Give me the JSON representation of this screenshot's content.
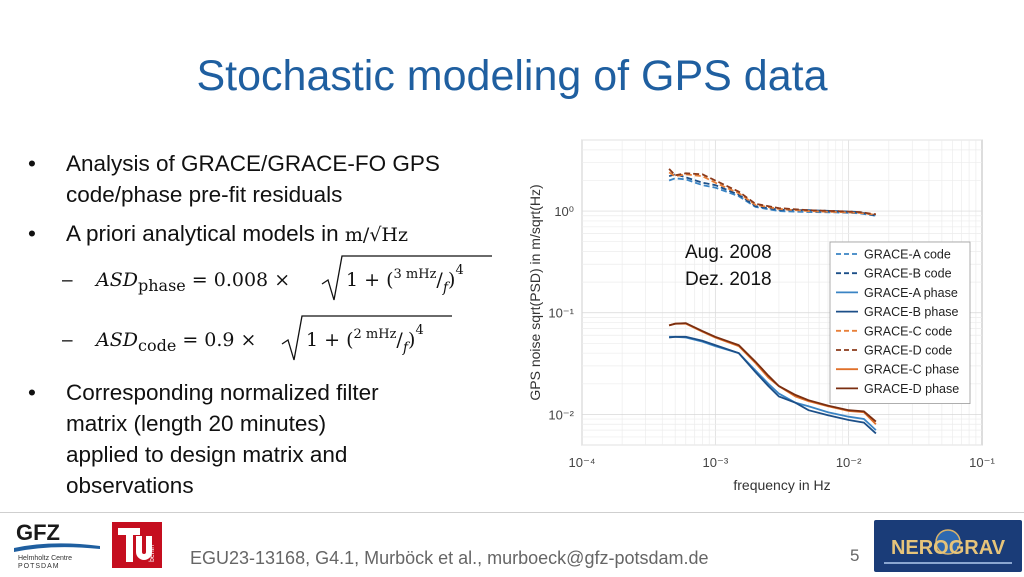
{
  "slide": {
    "title": "Stochastic modeling of GPS data",
    "bullets": [
      "Analysis of GRACE/GRACE-FO GPS",
      "code/phase pre-fit residuals",
      "A priori analytical models in",
      "Corresponding normalized filter",
      "matrix (length 20 minutes)",
      "applied to design matrix and",
      "observations"
    ],
    "units": "m/√Hz",
    "bullet_glyph": "•",
    "dash_glyph": "–",
    "formula_phase": {
      "lhs": "ASD",
      "sub": "phase",
      "rhs": "= 0.008 × ",
      "inner": "1 + (",
      "num": "3 mHz",
      "den": "f",
      "close": ")",
      "exp": "4"
    },
    "formula_code": {
      "lhs": "ASD",
      "sub": "code",
      "rhs": "= 0.9 × ",
      "inner": "1 + (",
      "num": "2 mHz",
      "den": "f",
      "close": ")",
      "exp": "4"
    },
    "footer": "EGU23-13168, G4.1, Murböck et al., murboeck@gfz-potsdam.de",
    "page_number": "5",
    "logos": {
      "gfz": "GFZ",
      "gfz_sub1": "Helmholtz Centre",
      "gfz_sub2": "POTSDAM",
      "tu": "berlin",
      "nerograv": "NEROGRAV"
    }
  },
  "chart_data": {
    "type": "line",
    "xscale": "log",
    "yscale": "log",
    "xlim": [
      0.0001,
      0.1
    ],
    "ylim": [
      0.005,
      5
    ],
    "xlabel": "frequency in Hz",
    "ylabel": "GPS noise sqrt(PSD) in m/sqrt(Hz)",
    "xticks": [
      "10⁻⁴",
      "10⁻³",
      "10⁻²",
      "10⁻¹"
    ],
    "yticks": [
      "10⁻²",
      "10⁻¹",
      "10⁰"
    ],
    "grid": true,
    "legend_position": "right",
    "annotation": [
      "Aug. 2008",
      "Dez. 2018"
    ],
    "series": [
      {
        "name": "GRACE-A code",
        "color": "#3a84c4",
        "dash": true,
        "x": [
          0.00045,
          0.0005,
          0.0006,
          0.0008,
          0.001,
          0.0015,
          0.002,
          0.003,
          0.005,
          0.008,
          0.012,
          0.016
        ],
        "y": [
          2.0,
          2.1,
          2.05,
          1.8,
          1.7,
          1.4,
          1.1,
          1.0,
          0.98,
          0.97,
          0.95,
          0.9
        ]
      },
      {
        "name": "GRACE-B code",
        "color": "#1c4f88",
        "dash": true,
        "x": [
          0.00045,
          0.0005,
          0.0006,
          0.0008,
          0.001,
          0.0015,
          0.002,
          0.003,
          0.005,
          0.008,
          0.012,
          0.016
        ],
        "y": [
          2.2,
          2.3,
          2.15,
          1.9,
          1.8,
          1.45,
          1.12,
          1.03,
          1.02,
          1.0,
          0.98,
          0.9
        ]
      },
      {
        "name": "GRACE-A phase",
        "color": "#3a84c4",
        "dash": false,
        "x": [
          0.00045,
          0.0005,
          0.0006,
          0.0008,
          0.001,
          0.0015,
          0.002,
          0.0025,
          0.003,
          0.004,
          0.005,
          0.007,
          0.01,
          0.013,
          0.016
        ],
        "y": [
          0.058,
          0.058,
          0.057,
          0.052,
          0.047,
          0.04,
          0.027,
          0.02,
          0.016,
          0.013,
          0.012,
          0.0105,
          0.0095,
          0.009,
          0.007
        ]
      },
      {
        "name": "GRACE-B phase",
        "color": "#1c4f88",
        "dash": false,
        "x": [
          0.00045,
          0.0005,
          0.0006,
          0.0008,
          0.001,
          0.0015,
          0.002,
          0.0025,
          0.003,
          0.004,
          0.005,
          0.007,
          0.01,
          0.013,
          0.016
        ],
        "y": [
          0.057,
          0.058,
          0.058,
          0.053,
          0.048,
          0.04,
          0.026,
          0.019,
          0.015,
          0.013,
          0.011,
          0.0098,
          0.0088,
          0.0083,
          0.0065
        ]
      },
      {
        "name": "GRACE-C code",
        "color": "#e8803a",
        "dash": true,
        "x": [
          0.00045,
          0.0005,
          0.0006,
          0.0008,
          0.001,
          0.0015,
          0.002,
          0.003,
          0.005,
          0.008,
          0.012,
          0.016
        ],
        "y": [
          2.4,
          2.2,
          2.3,
          2.2,
          1.9,
          1.5,
          1.15,
          1.05,
          1.0,
          0.98,
          0.96,
          0.92
        ]
      },
      {
        "name": "GRACE-D code",
        "color": "#8b3a1a",
        "dash": true,
        "x": [
          0.00045,
          0.0005,
          0.0006,
          0.0008,
          0.001,
          0.0015,
          0.002,
          0.003,
          0.005,
          0.008,
          0.012,
          0.016
        ],
        "y": [
          2.6,
          2.25,
          2.35,
          2.3,
          2.0,
          1.55,
          1.18,
          1.07,
          1.02,
          1.0,
          0.98,
          0.93
        ]
      },
      {
        "name": "GRACE-C phase",
        "color": "#e0702a",
        "dash": false,
        "x": [
          0.00045,
          0.0005,
          0.0006,
          0.0008,
          0.001,
          0.0015,
          0.002,
          0.0025,
          0.003,
          0.004,
          0.005,
          0.007,
          0.01,
          0.013,
          0.016
        ],
        "y": [
          0.075,
          0.078,
          0.078,
          0.065,
          0.057,
          0.047,
          0.032,
          0.023,
          0.019,
          0.015,
          0.0135,
          0.012,
          0.0108,
          0.0105,
          0.008
        ]
      },
      {
        "name": "GRACE-D phase",
        "color": "#7a2e10",
        "dash": false,
        "x": [
          0.00045,
          0.0005,
          0.0006,
          0.0008,
          0.001,
          0.0015,
          0.002,
          0.0025,
          0.003,
          0.004,
          0.005,
          0.007,
          0.01,
          0.013,
          0.016
        ],
        "y": [
          0.075,
          0.078,
          0.079,
          0.066,
          0.058,
          0.048,
          0.033,
          0.024,
          0.019,
          0.0155,
          0.0138,
          0.0122,
          0.011,
          0.0107,
          0.0085
        ]
      }
    ]
  }
}
